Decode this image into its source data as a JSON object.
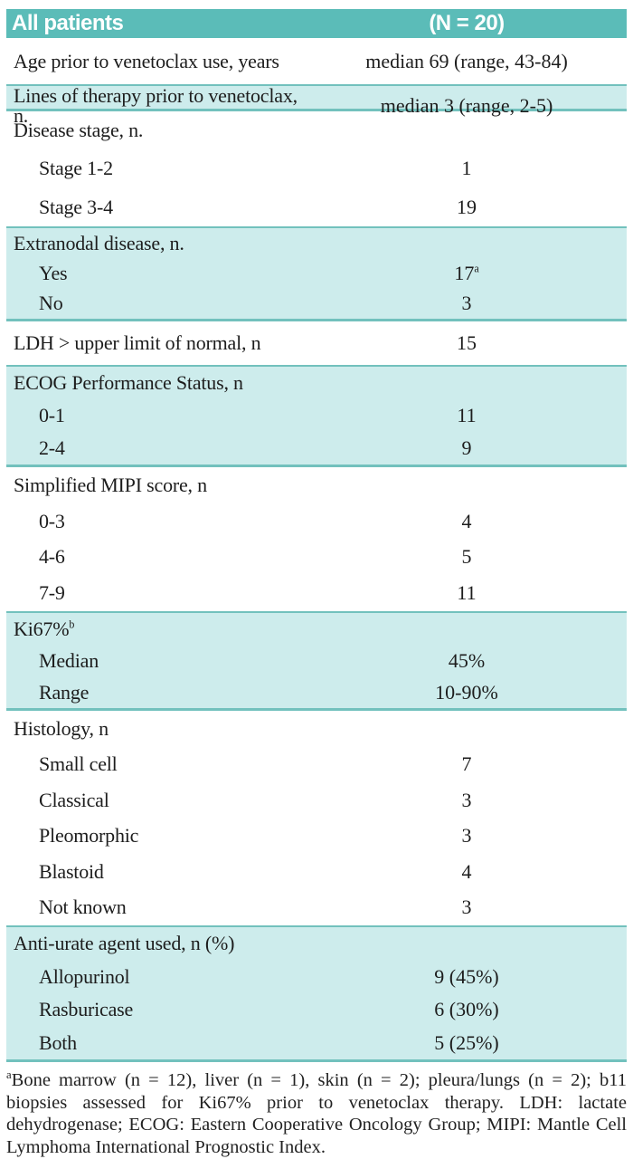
{
  "table": {
    "header": {
      "label": "All patients",
      "value": "(N = 20)"
    },
    "groups": [
      {
        "shaded": false,
        "rows": [
          {
            "label": "Age prior to venetoclax use, years",
            "value": "median 69 (range, 43-84)",
            "indent": false
          }
        ]
      },
      {
        "shaded": true,
        "rows": [
          {
            "label": "Lines of therapy prior to venetoclax, n.",
            "value": "median 3 (range, 2-5)",
            "indent": false
          }
        ]
      },
      {
        "shaded": false,
        "rows": [
          {
            "label": "Disease stage, n.",
            "value": "",
            "indent": false
          },
          {
            "label": "Stage 1-2",
            "value": "1",
            "indent": true
          },
          {
            "label": "Stage 3-4",
            "value": "19",
            "indent": true
          }
        ]
      },
      {
        "shaded": true,
        "rows": [
          {
            "label": "Extranodal disease, n.",
            "value": "",
            "indent": false
          },
          {
            "label": "Yes",
            "value": "17",
            "value_sup": "a",
            "indent": true
          },
          {
            "label": "No",
            "value": "3",
            "indent": true
          }
        ]
      },
      {
        "shaded": false,
        "rows": [
          {
            "label": "LDH > upper limit of normal, n",
            "value": "15",
            "indent": false
          }
        ]
      },
      {
        "shaded": true,
        "rows": [
          {
            "label": "ECOG Performance Status, n",
            "value": "",
            "indent": false
          },
          {
            "label": "0-1",
            "value": "11",
            "indent": true
          },
          {
            "label": "2-4",
            "value": "9",
            "indent": true
          }
        ]
      },
      {
        "shaded": false,
        "rows": [
          {
            "label": "Simplified MIPI score, n",
            "value": "",
            "indent": false
          },
          {
            "label": "0-3",
            "value": "4",
            "indent": true
          },
          {
            "label": "4-6",
            "value": "5",
            "indent": true
          },
          {
            "label": "7-9",
            "value": "11",
            "indent": true
          }
        ]
      },
      {
        "shaded": true,
        "rows": [
          {
            "label": "Ki67%",
            "label_sup": "b",
            "value": "",
            "indent": false
          },
          {
            "label": "Median",
            "value": "45%",
            "indent": true
          },
          {
            "label": "Range",
            "value": "10-90%",
            "indent": true
          }
        ]
      },
      {
        "shaded": false,
        "rows": [
          {
            "label": "Histology, n",
            "value": "",
            "indent": false
          },
          {
            "label": "Small cell",
            "value": "7",
            "indent": true
          },
          {
            "label": "Classical",
            "value": "3",
            "indent": true
          },
          {
            "label": "Pleomorphic",
            "value": "3",
            "indent": true
          },
          {
            "label": "Blastoid",
            "value": "4",
            "indent": true
          },
          {
            "label": "Not known",
            "value": "3",
            "indent": true
          }
        ]
      },
      {
        "shaded": true,
        "rows": [
          {
            "label": "Anti-urate agent used, n (%)",
            "value": "",
            "indent": false
          },
          {
            "label": "Allopurinol",
            "value": "9 (45%)",
            "indent": true
          },
          {
            "label": "Rasburicase",
            "value": "6 (30%)",
            "indent": true
          },
          {
            "label": "Both",
            "value": "5 (25%)",
            "indent": true
          }
        ]
      }
    ]
  },
  "footnote": {
    "marker": "a",
    "text": "Bone marrow (n = 12), liver (n = 1), skin (n = 2); pleura/lungs (n = 2); b11 biopsies assessed for Ki67% prior to venetoclax therapy. LDH: lactate dehydrogenase; ECOG: Eastern Cooperative Oncology Group; MIPI: Mantle Cell Lymphoma International Prognostic Index."
  },
  "colors": {
    "header_bg": "#5bbcb8",
    "band_bg": "#cdecec",
    "band_border": "#72c1bd",
    "header_text": "#ffffff",
    "body_text": "#1d1d1d"
  }
}
